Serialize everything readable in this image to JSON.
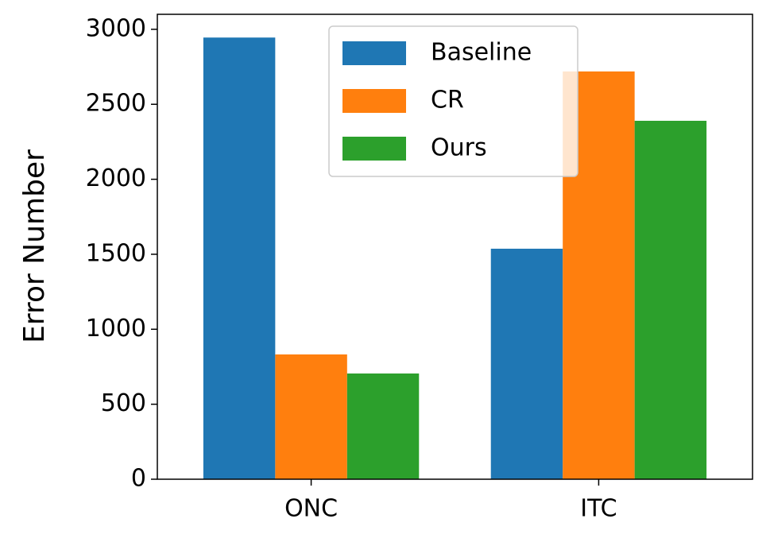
{
  "chart_data": {
    "type": "grouped_bar",
    "y_label": "Error Number",
    "categories": [
      "ONC",
      "ITC"
    ],
    "series": [
      {
        "name": "Baseline",
        "color": "#1f77b4",
        "values": [
          2945,
          1537
        ]
      },
      {
        "name": "CR",
        "color": "#ff7f0e",
        "values": [
          832,
          2719
        ]
      },
      {
        "name": "Ours",
        "color": "#2ca02c",
        "values": [
          705,
          2390
        ]
      }
    ],
    "ylim": [
      0,
      3100
    ],
    "yticks": [
      0,
      500,
      1000,
      1500,
      2000,
      2500,
      3000
    ],
    "legend": "upper center"
  }
}
